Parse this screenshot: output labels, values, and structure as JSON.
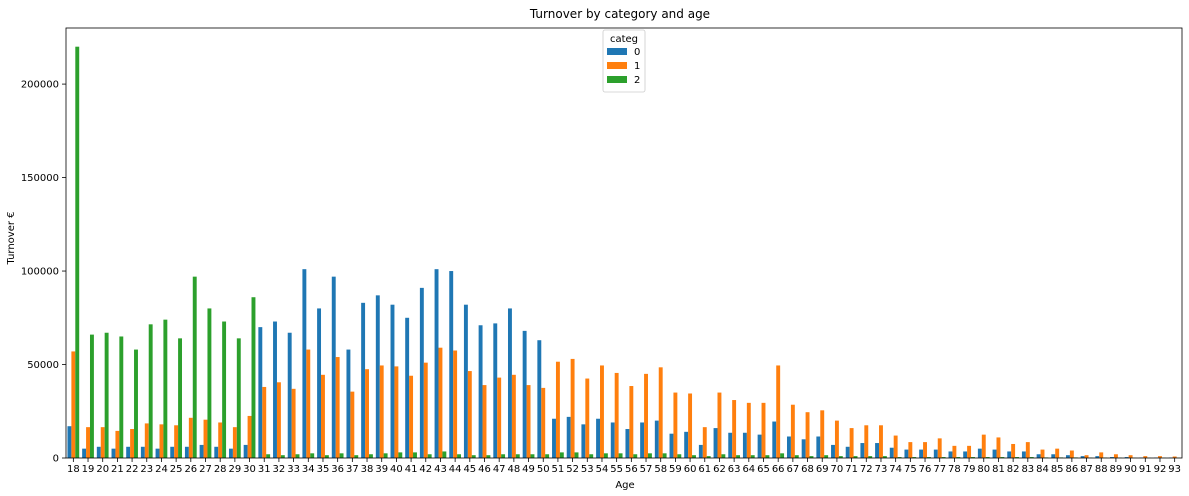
{
  "chart_data": {
    "type": "bar",
    "title": "Turnover by category and age",
    "xlabel": "Age",
    "ylabel": "Turnover €",
    "ylim": [
      0,
      230000
    ],
    "yticks": [
      0,
      50000,
      100000,
      150000,
      200000
    ],
    "legend": {
      "title": "categ",
      "position": "top-center"
    },
    "categories": [
      "18",
      "19",
      "20",
      "21",
      "22",
      "23",
      "24",
      "25",
      "26",
      "27",
      "28",
      "29",
      "30",
      "31",
      "32",
      "33",
      "34",
      "35",
      "36",
      "37",
      "38",
      "39",
      "40",
      "41",
      "42",
      "43",
      "44",
      "45",
      "46",
      "47",
      "48",
      "49",
      "50",
      "51",
      "52",
      "53",
      "54",
      "55",
      "56",
      "57",
      "58",
      "59",
      "60",
      "61",
      "62",
      "63",
      "64",
      "65",
      "66",
      "67",
      "68",
      "69",
      "70",
      "71",
      "72",
      "73",
      "74",
      "75",
      "76",
      "77",
      "78",
      "79",
      "80",
      "81",
      "82",
      "83",
      "84",
      "85",
      "86",
      "87",
      "88",
      "89",
      "90",
      "91",
      "92",
      "93"
    ],
    "series": [
      {
        "name": "0",
        "color": "#1f77b4",
        "values": [
          17000,
          5000,
          6000,
          5000,
          6000,
          6000,
          5000,
          6000,
          6000,
          7000,
          6000,
          5000,
          7000,
          70000,
          73000,
          67000,
          101000,
          80000,
          97000,
          58000,
          83000,
          87000,
          82000,
          75000,
          91000,
          101000,
          100000,
          82000,
          71000,
          72000,
          80000,
          68000,
          63000,
          21000,
          22000,
          18000,
          21000,
          19000,
          15500,
          19000,
          20000,
          13000,
          14000,
          7000,
          16000,
          13500,
          13500,
          12500,
          19500,
          11500,
          10000,
          11500,
          7000,
          6000,
          8000,
          8000,
          5500,
          4500,
          4500,
          4500,
          3500,
          3500,
          5000,
          4500,
          3500,
          3500,
          2000,
          2000,
          1500,
          1000,
          1000,
          500,
          500,
          200,
          200,
          200
        ],
        "_note": "values estimated from gridlines"
      },
      {
        "name": "1",
        "color": "#ff7f0e",
        "values": [
          57000,
          16500,
          16500,
          14500,
          15500,
          18500,
          18000,
          17500,
          21500,
          20500,
          19000,
          16500,
          22500,
          38000,
          40500,
          37000,
          58000,
          44500,
          54000,
          35500,
          47500,
          49500,
          49000,
          44000,
          51000,
          59000,
          57500,
          46500,
          39000,
          43000,
          44500,
          39000,
          37500,
          51500,
          53000,
          42500,
          49500,
          45500,
          38500,
          45000,
          48500,
          35000,
          34500,
          16500,
          35000,
          31000,
          29500,
          29500,
          49500,
          28500,
          24500,
          25500,
          20000,
          16000,
          17500,
          17500,
          12000,
          8500,
          8500,
          10500,
          6500,
          6500,
          12500,
          11000,
          7500,
          8500,
          4500,
          5000,
          4000,
          1500,
          3000,
          2000,
          1500,
          1000,
          1000,
          800
        ]
      },
      {
        "name": "2",
        "color": "#2ca02c",
        "values": [
          220000,
          66000,
          67000,
          65000,
          58000,
          71500,
          74000,
          64000,
          97000,
          80000,
          73000,
          64000,
          86000,
          2000,
          1500,
          2000,
          2500,
          1500,
          2500,
          1500,
          2000,
          2500,
          3000,
          3000,
          2000,
          3500,
          2000,
          1500,
          1500,
          2000,
          2000,
          2000,
          2000,
          3000,
          3000,
          2000,
          2500,
          2500,
          2000,
          2500,
          2500,
          2000,
          1500,
          1000,
          2000,
          1500,
          1500,
          1500,
          2500,
          1500,
          1000,
          1500,
          1000,
          1000,
          1000,
          1000,
          500,
          500,
          500,
          500,
          500,
          500,
          500,
          500,
          500,
          500,
          300,
          300,
          300,
          200,
          200,
          200,
          100,
          100,
          100,
          100
        ]
      }
    ]
  }
}
